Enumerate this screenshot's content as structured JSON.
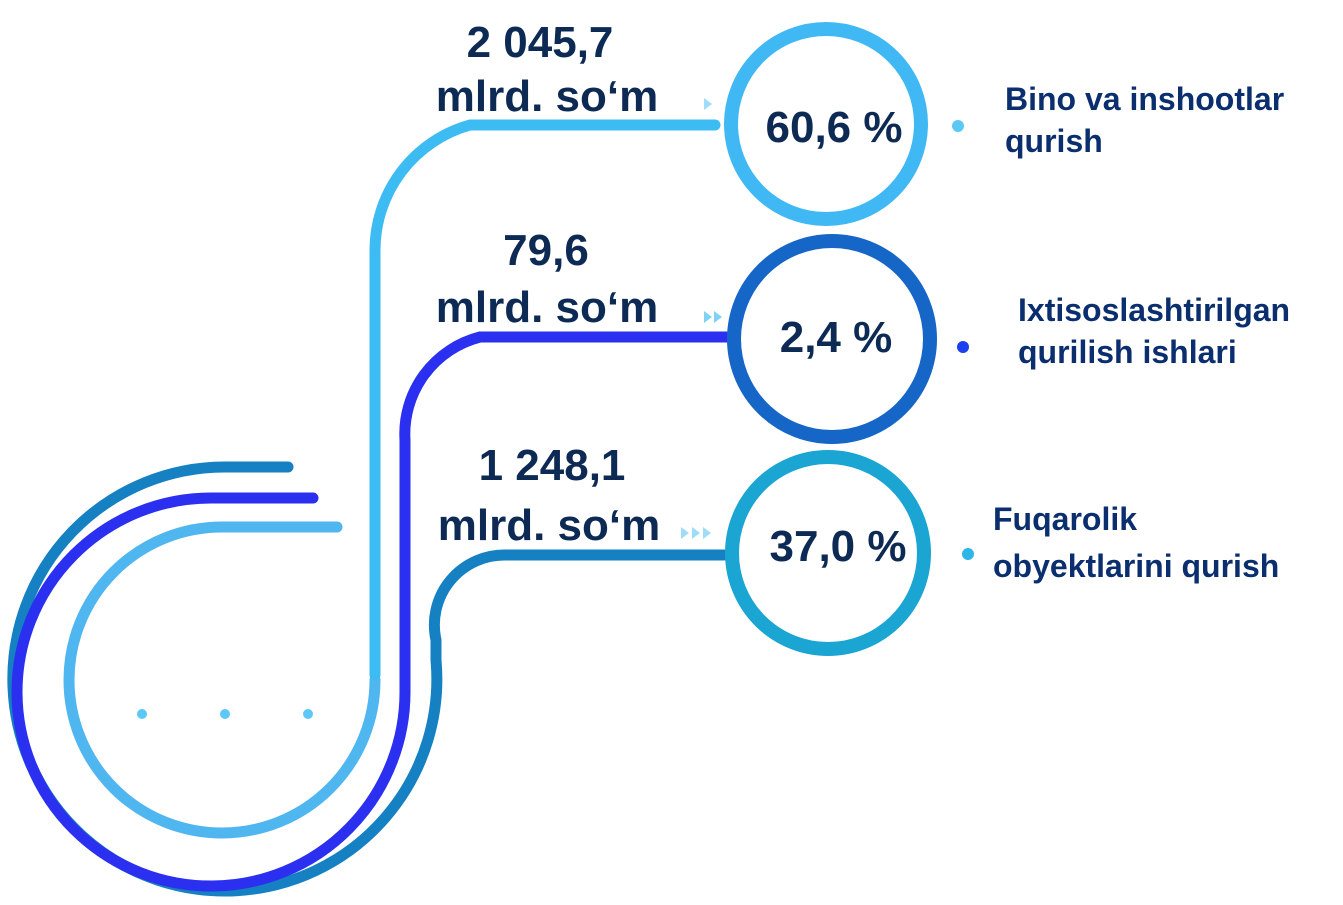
{
  "colors": {
    "light_blue": "#3cbcf2",
    "royal_blue": "#2b2ff0",
    "steel_blue": "#1580c2",
    "circle1": "#40b8f4",
    "circle2": "#1666c8",
    "circle3": "#1aa5d2",
    "text_dark": "#0d2a55"
  },
  "items": [
    {
      "amount_value": "2 045,7",
      "amount_unit": "mlrd. so‘m",
      "percent": "60,6 %",
      "label_line1": "Bino va inshootlar",
      "label_line2": "qurish",
      "arrow_icon": "single-chevron",
      "dot_color": "#5cc8f5"
    },
    {
      "amount_value": "79,6",
      "amount_unit": "mlrd. so‘m",
      "percent": "2,4 %",
      "label_line1": "Ixtisoslashtirilgan",
      "label_line2": "qurilish ishlari",
      "arrow_icon": "double-chevron",
      "dot_color": "#1c3ff0"
    },
    {
      "amount_value": "1 248,1",
      "amount_unit": "mlrd. so‘m",
      "percent": "37,0 %",
      "label_line1": "Fuqarolik",
      "label_line2": "obyektlarini qurish",
      "arrow_icon": "triple-chevron",
      "dot_color": "#2eb7e6"
    }
  ]
}
